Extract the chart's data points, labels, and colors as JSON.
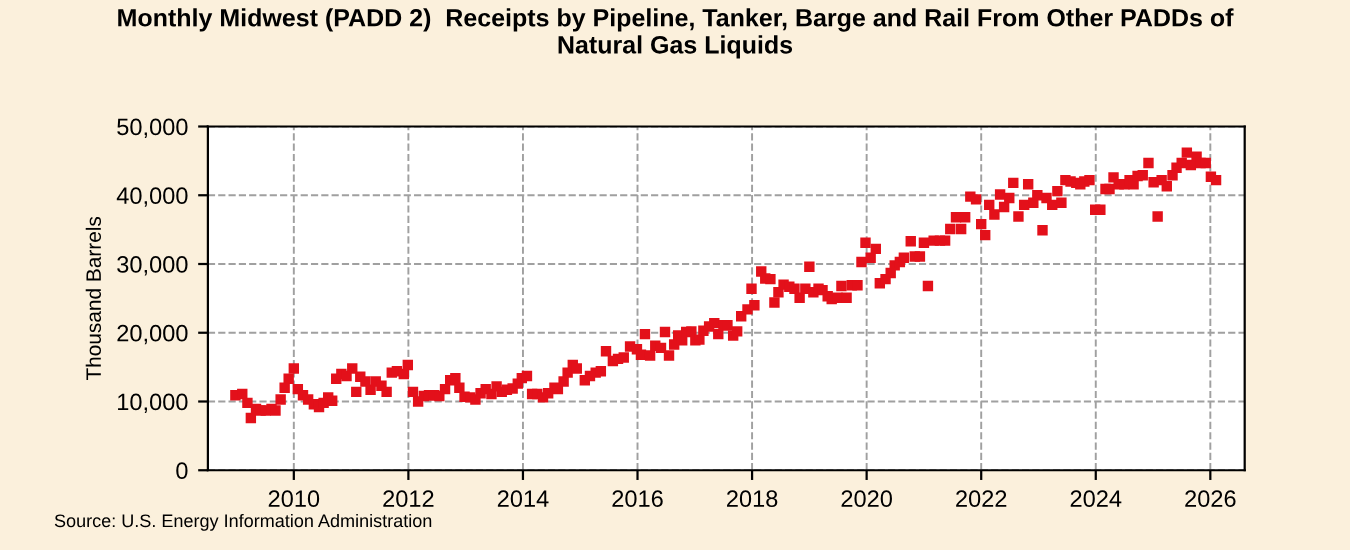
{
  "chart_data": {
    "type": "scatter",
    "title": "Monthly Midwest (PADD 2)  Receipts by Pipeline, Tanker, Barge and Rail From Other PADDs of\nNatural Gas Liquids",
    "ylabel": "Thousand Barrels",
    "annotations": [
      "Source: U.S. Energy Information Administration"
    ],
    "x": [
      2008.98,
      2009.1,
      2009.19,
      2009.25,
      2009.34,
      2009.42,
      2009.51,
      2009.61,
      2009.68,
      2009.77,
      2009.84,
      2009.91,
      2010.0,
      2010.07,
      2010.16,
      2010.25,
      2010.35,
      2010.44,
      2010.52,
      2010.6,
      2010.67,
      2010.74,
      2010.83,
      2010.92,
      2011.02,
      2011.09,
      2011.16,
      2011.25,
      2011.34,
      2011.43,
      2011.53,
      2011.62,
      2011.71,
      2011.8,
      2011.92,
      2011.99,
      2012.08,
      2012.17,
      2012.27,
      2012.36,
      2012.45,
      2012.54,
      2012.64,
      2012.73,
      2012.82,
      2012.89,
      2012.98,
      2013.08,
      2013.17,
      2013.26,
      2013.35,
      2013.45,
      2013.54,
      2013.63,
      2013.72,
      2013.82,
      2013.91,
      2013.98,
      2014.07,
      2014.16,
      2014.25,
      2014.35,
      2014.44,
      2014.55,
      2014.61,
      2014.71,
      2014.78,
      2014.87,
      2014.94,
      2015.08,
      2015.17,
      2015.27,
      2015.36,
      2015.45,
      2015.57,
      2015.66,
      2015.76,
      2015.87,
      2015.99,
      2016.06,
      2016.13,
      2016.22,
      2016.31,
      2016.41,
      2016.48,
      2016.55,
      2016.64,
      2016.71,
      2016.78,
      2016.85,
      2016.94,
      2017.01,
      2017.08,
      2017.15,
      2017.25,
      2017.34,
      2017.41,
      2017.5,
      2017.57,
      2017.67,
      2017.74,
      2017.81,
      2017.92,
      2017.99,
      2018.04,
      2018.16,
      2018.23,
      2018.32,
      2018.39,
      2018.46,
      2018.55,
      2018.65,
      2018.74,
      2018.83,
      2018.93,
      2019.0,
      2019.07,
      2019.16,
      2019.23,
      2019.32,
      2019.39,
      2019.49,
      2019.56,
      2019.65,
      2019.74,
      2019.84,
      2019.91,
      2019.98,
      2020.07,
      2020.16,
      2020.23,
      2020.33,
      2020.42,
      2020.49,
      2020.58,
      2020.65,
      2020.77,
      2020.84,
      2020.93,
      2021.0,
      2021.07,
      2021.17,
      2021.28,
      2021.37,
      2021.46,
      2021.56,
      2021.65,
      2021.72,
      2021.81,
      2021.91,
      2022.0,
      2022.07,
      2022.14,
      2022.23,
      2022.33,
      2022.4,
      2022.49,
      2022.56,
      2022.65,
      2022.75,
      2022.82,
      2022.91,
      2022.98,
      2023.07,
      2023.14,
      2023.24,
      2023.33,
      2023.4,
      2023.47,
      2023.56,
      2023.66,
      2023.73,
      2023.8,
      2023.89,
      2023.99,
      2024.08,
      2024.17,
      2024.24,
      2024.31,
      2024.4,
      2024.5,
      2024.59,
      2024.66,
      2024.73,
      2024.82,
      2024.92,
      2025.01,
      2025.08,
      2025.15,
      2025.24,
      2025.34,
      2025.41,
      2025.5,
      2025.59,
      2025.66,
      2025.76,
      2025.83,
      2025.92,
      2026.01,
      2026.1
    ],
    "series": [
      {
        "color": "#e3101a",
        "values": [
          10900,
          11100,
          9800,
          7600,
          8900,
          8700,
          8700,
          8900,
          8700,
          10300,
          12000,
          13300,
          14800,
          11800,
          10900,
          10300,
          9600,
          9200,
          9800,
          10600,
          10100,
          13300,
          14000,
          13700,
          14800,
          11400,
          13600,
          12900,
          11700,
          12900,
          12300,
          11400,
          14200,
          14400,
          14000,
          15300,
          11400,
          10000,
          10800,
          10900,
          10900,
          10800,
          11800,
          13100,
          13400,
          12000,
          10700,
          10600,
          10300,
          11200,
          11800,
          11100,
          12200,
          11400,
          11700,
          11900,
          12600,
          13400,
          13700,
          11100,
          11100,
          10600,
          11200,
          12000,
          11800,
          12900,
          14200,
          15300,
          14800,
          13100,
          13700,
          14200,
          14400,
          17300,
          15900,
          16200,
          16400,
          18000,
          17600,
          16800,
          19800,
          16700,
          18100,
          17800,
          20100,
          16700,
          18300,
          19600,
          18900,
          20100,
          20200,
          18900,
          19000,
          20300,
          20900,
          21400,
          19800,
          21100,
          21100,
          19600,
          20200,
          22400,
          23400,
          26400,
          24000,
          28900,
          27900,
          27800,
          24400,
          25900,
          27000,
          26700,
          26400,
          25100,
          26400,
          29600,
          25900,
          26400,
          26200,
          25300,
          24900,
          25100,
          26800,
          25100,
          26900,
          26900,
          30300,
          33100,
          30900,
          32200,
          27200,
          27800,
          28700,
          29800,
          30300,
          30900,
          33300,
          31100,
          31100,
          33100,
          26800,
          33400,
          33400,
          33400,
          35100,
          36800,
          35100,
          36800,
          39800,
          39400,
          35800,
          34200,
          38600,
          37200,
          40100,
          38300,
          39600,
          41800,
          36900,
          38600,
          41600,
          38900,
          40000,
          34900,
          39600,
          38600,
          40600,
          38900,
          42200,
          42000,
          41800,
          41600,
          42000,
          42200,
          37900,
          37900,
          40900,
          40900,
          42600,
          41600,
          41600,
          42200,
          41600,
          42800,
          42900,
          44700,
          41900,
          36900,
          42200,
          41300,
          42900,
          44000,
          44700,
          46200,
          44400,
          45600,
          44700,
          44700,
          42700,
          42200
        ]
      }
    ],
    "marker": "square",
    "xlim": [
      2008.5,
      2026.6
    ],
    "xticks": [
      2010,
      2012,
      2014,
      2016,
      2018,
      2020,
      2022,
      2024,
      2026
    ],
    "ylim": [
      0,
      50000
    ],
    "yticks": [
      0,
      {
        "value": 10000,
        "label": "10,000"
      },
      {
        "value": 20000,
        "label": "20,000"
      },
      {
        "value": 30000,
        "label": "30,000"
      },
      {
        "value": 40000,
        "label": "40,000"
      },
      {
        "value": 50000,
        "label": "50,000"
      }
    ],
    "grid": true
  }
}
